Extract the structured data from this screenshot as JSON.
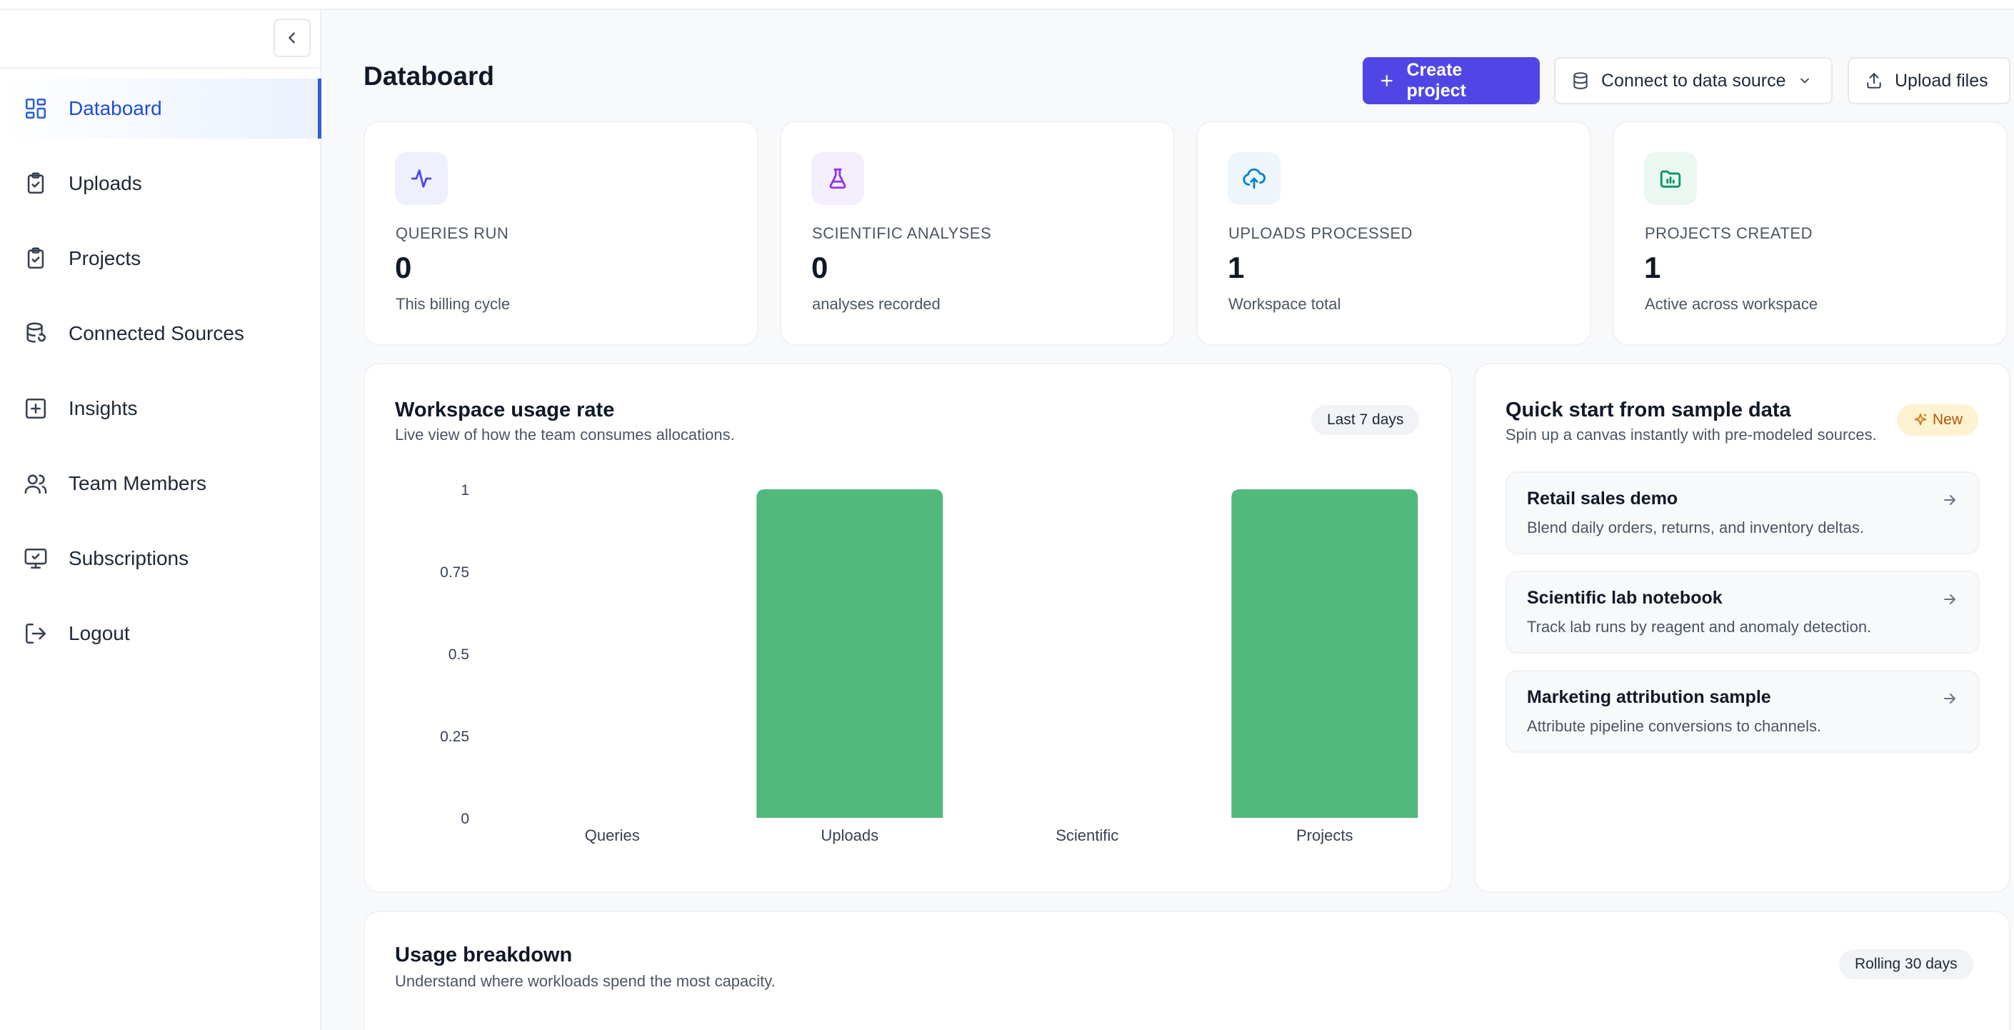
{
  "sidebar": {
    "items": [
      {
        "label": "Databoard",
        "icon": "dashboard-icon",
        "active": true
      },
      {
        "label": "Uploads",
        "icon": "clipboard-check-icon"
      },
      {
        "label": "Projects",
        "icon": "clipboard-check-icon"
      },
      {
        "label": "Connected Sources",
        "icon": "database-sync-icon"
      },
      {
        "label": "Insights",
        "icon": "plus-square-icon"
      },
      {
        "label": "Team Members",
        "icon": "users-icon"
      },
      {
        "label": "Subscriptions",
        "icon": "monitor-check-icon"
      },
      {
        "label": "Logout",
        "icon": "logout-icon"
      }
    ]
  },
  "header": {
    "title": "Databoard",
    "create_label": "Create project",
    "connect_label": "Connect to data source",
    "upload_label": "Upload files"
  },
  "stats": [
    {
      "label": "QUERIES RUN",
      "value": "0",
      "sub": "This billing cycle",
      "icon": "activity-icon",
      "color": "#4f46e5",
      "bg": "#eef0fd"
    },
    {
      "label": "SCIENTIFIC ANALYSES",
      "value": "0",
      "sub": "analyses recorded",
      "icon": "flask-icon",
      "color": "#9333ea",
      "bg": "#f5effd"
    },
    {
      "label": "UPLOADS PROCESSED",
      "value": "1",
      "sub": "Workspace total",
      "icon": "cloud-upload-icon",
      "color": "#0284c7",
      "bg": "#eef6fc"
    },
    {
      "label": "PROJECTS CREATED",
      "value": "1",
      "sub": "Active across workspace",
      "icon": "folder-chart-icon",
      "color": "#059669",
      "bg": "#eaf8f1"
    }
  ],
  "usage_chart": {
    "title": "Workspace usage rate",
    "subtitle": "Live view of how the team consumes allocations.",
    "range_label": "Last 7 days"
  },
  "chart_data": {
    "type": "bar",
    "categories": [
      "Queries",
      "Uploads",
      "Scientific",
      "Projects"
    ],
    "values": [
      0,
      1,
      0,
      1
    ],
    "yticks": [
      "0",
      "0.25",
      "0.5",
      "0.75",
      "1"
    ],
    "ylim": [
      0,
      1
    ],
    "color": "#52b97d",
    "title": "Workspace usage rate",
    "xlabel": "",
    "ylabel": ""
  },
  "quick_start": {
    "title": "Quick start from sample data",
    "subtitle": "Spin up a canvas instantly with pre-modeled sources.",
    "badge": "New",
    "items": [
      {
        "title": "Retail sales demo",
        "desc": "Blend daily orders, returns, and inventory deltas."
      },
      {
        "title": "Scientific lab notebook",
        "desc": "Track lab runs by reagent and anomaly detection."
      },
      {
        "title": "Marketing attribution sample",
        "desc": "Attribute pipeline conversions to channels."
      }
    ]
  },
  "usage_breakdown": {
    "title": "Usage breakdown",
    "subtitle": "Understand where workloads spend the most capacity.",
    "range_label": "Rolling 30 days"
  }
}
